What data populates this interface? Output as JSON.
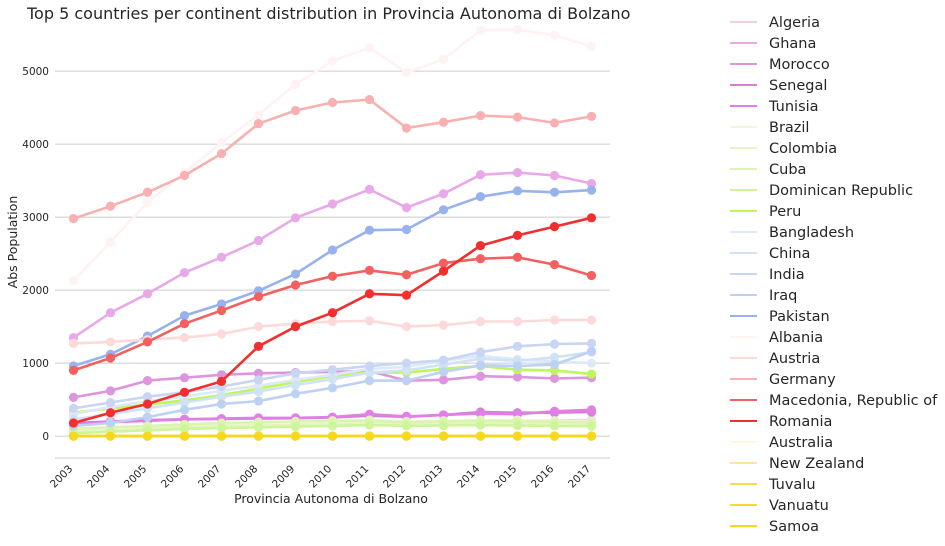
{
  "chart_data": {
    "type": "line",
    "title": "Top 5 countries per continent distribution in Provincia Autonoma di Bolzano",
    "xlabel": "Provincia Autonoma di Bolzano",
    "ylabel": "Abs Population",
    "ylim": [
      -300,
      5700
    ],
    "yticks": [
      0,
      1000,
      2000,
      3000,
      4000,
      5000
    ],
    "grid": "horizontal",
    "legend_position": "right (outside plot)",
    "categories": [
      "2003",
      "2004",
      "2005",
      "2006",
      "2007",
      "2008",
      "2009",
      "2010",
      "2011",
      "2012",
      "2013",
      "2014",
      "2015",
      "2016",
      "2017"
    ],
    "series": [
      {
        "name": "Algeria",
        "color": "#f3cfe6",
        "values": [
          60,
          70,
          85,
          100,
          115,
          130,
          145,
          160,
          175,
          170,
          185,
          200,
          210,
          215,
          220
        ]
      },
      {
        "name": "Ghana",
        "color": "#e8a9e8",
        "values": [
          1350,
          1690,
          1950,
          2240,
          2450,
          2680,
          2990,
          3180,
          3380,
          3130,
          3320,
          3580,
          3610,
          3570,
          3460
        ]
      },
      {
        "name": "Morocco",
        "color": "#dd96dd",
        "values": [
          530,
          620,
          760,
          800,
          840,
          860,
          870,
          880,
          890,
          760,
          770,
          820,
          810,
          790,
          800
        ]
      },
      {
        "name": "Senegal",
        "color": "#d67fd6",
        "values": [
          180,
          200,
          220,
          230,
          235,
          240,
          245,
          255,
          280,
          265,
          290,
          330,
          320,
          320,
          330
        ]
      },
      {
        "name": "Tunisia",
        "color": "#e07fe6",
        "values": [
          160,
          190,
          210,
          230,
          240,
          250,
          250,
          260,
          300,
          270,
          290,
          310,
          300,
          340,
          360
        ]
      },
      {
        "name": "Brazil",
        "color": "#f0f8da",
        "values": [
          80,
          110,
          130,
          150,
          170,
          190,
          200,
          210,
          220,
          200,
          210,
          220,
          220,
          210,
          200
        ]
      },
      {
        "name": "Colombia",
        "color": "#e6f6c2",
        "values": [
          60,
          80,
          100,
          120,
          140,
          150,
          160,
          170,
          175,
          160,
          170,
          180,
          175,
          170,
          165
        ]
      },
      {
        "name": "Cuba",
        "color": "#ddf3b0",
        "values": [
          100,
          120,
          140,
          160,
          180,
          190,
          200,
          210,
          210,
          190,
          200,
          210,
          205,
          195,
          190
        ]
      },
      {
        "name": "Dominican Republic",
        "color": "#cff59c",
        "values": [
          40,
          60,
          80,
          100,
          110,
          120,
          130,
          140,
          150,
          140,
          145,
          150,
          145,
          140,
          135
        ]
      },
      {
        "name": "Peru",
        "color": "#bff65a",
        "values": [
          320,
          380,
          430,
          490,
          560,
          650,
          740,
          820,
          870,
          870,
          920,
          960,
          910,
          900,
          850
        ]
      },
      {
        "name": "Bangladesh",
        "color": "#dde9f7",
        "values": [
          300,
          400,
          480,
          540,
          620,
          690,
          770,
          840,
          920,
          950,
          1030,
          1100,
          1050,
          1020,
          1000
        ]
      },
      {
        "name": "China",
        "color": "#d0e2f5",
        "values": [
          230,
          300,
          380,
          460,
          540,
          610,
          700,
          780,
          870,
          900,
          980,
          1060,
          1030,
          1080,
          1150
        ]
      },
      {
        "name": "India",
        "color": "#c8d6f4",
        "values": [
          380,
          460,
          540,
          600,
          680,
          770,
          860,
          910,
          960,
          1000,
          1040,
          1150,
          1230,
          1260,
          1270
        ]
      },
      {
        "name": "Iraq",
        "color": "#bdd1f3",
        "values": [
          140,
          180,
          260,
          360,
          440,
          480,
          580,
          660,
          760,
          760,
          880,
          970,
          960,
          980,
          1160
        ]
      },
      {
        "name": "Pakistan",
        "color": "#97b2ec",
        "values": [
          960,
          1120,
          1370,
          1650,
          1810,
          1990,
          2220,
          2550,
          2820,
          2830,
          3100,
          3280,
          3360,
          3340,
          3370
        ]
      },
      {
        "name": "Albania",
        "color": "#fff2f2",
        "values": [
          2130,
          2660,
          3200,
          3610,
          4020,
          4400,
          4820,
          5140,
          5320,
          4980,
          5160,
          5560,
          5570,
          5490,
          5340
        ]
      },
      {
        "name": "Austria",
        "color": "#fddada",
        "values": [
          1270,
          1290,
          1320,
          1350,
          1400,
          1500,
          1540,
          1570,
          1580,
          1500,
          1520,
          1570,
          1570,
          1590,
          1590
        ]
      },
      {
        "name": "Germany",
        "color": "#f8b0b0",
        "values": [
          2980,
          3150,
          3340,
          3570,
          3870,
          4280,
          4460,
          4570,
          4610,
          4220,
          4300,
          4390,
          4370,
          4290,
          4380
        ]
      },
      {
        "name": "Macedonia, Republic of",
        "color": "#f26060",
        "values": [
          900,
          1070,
          1290,
          1540,
          1720,
          1910,
          2070,
          2190,
          2270,
          2210,
          2370,
          2430,
          2450,
          2350,
          2200
        ]
      },
      {
        "name": "Romania",
        "color": "#f22e2e",
        "values": [
          180,
          320,
          440,
          600,
          750,
          1230,
          1500,
          1690,
          1950,
          1930,
          2260,
          2610,
          2750,
          2870,
          2990
        ]
      },
      {
        "name": "Australia",
        "color": "#fff9dc",
        "values": [
          5,
          5,
          5,
          5,
          5,
          5,
          5,
          5,
          5,
          5,
          5,
          5,
          5,
          5,
          5
        ]
      },
      {
        "name": "New Zealand",
        "color": "#fbe6a0",
        "values": [
          2,
          2,
          2,
          2,
          2,
          2,
          2,
          2,
          2,
          2,
          2,
          2,
          2,
          2,
          2
        ]
      },
      {
        "name": "Tuvalu",
        "color": "#f8dc50",
        "values": [
          0,
          0,
          0,
          0,
          0,
          0,
          0,
          0,
          0,
          0,
          0,
          0,
          0,
          0,
          0
        ]
      },
      {
        "name": "Vanuatu",
        "color": "#f7d838",
        "values": [
          0,
          0,
          0,
          0,
          0,
          0,
          0,
          0,
          0,
          0,
          0,
          0,
          0,
          0,
          0
        ]
      },
      {
        "name": "Samoa",
        "color": "#f5d91e",
        "values": [
          0,
          0,
          0,
          0,
          0,
          0,
          0,
          0,
          0,
          0,
          0,
          0,
          0,
          0,
          0
        ]
      }
    ]
  }
}
